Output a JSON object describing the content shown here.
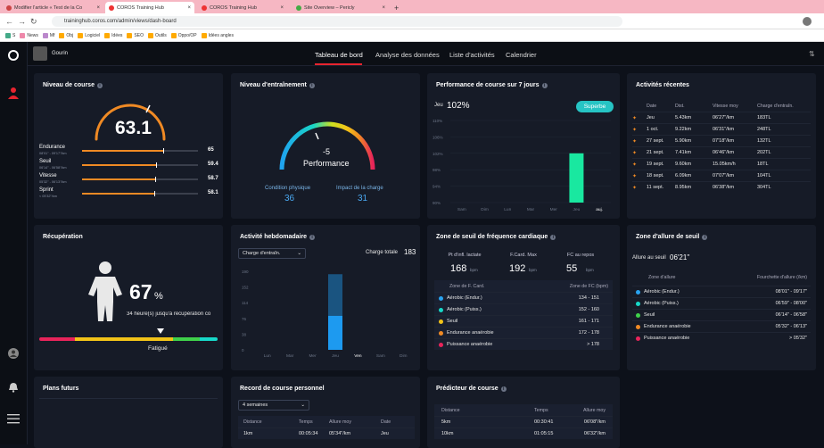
{
  "browser": {
    "tabs": [
      {
        "label": "Modifier l'article « Test de la Co",
        "color": "#c44"
      },
      {
        "label": "COROS Training Hub",
        "color": "#e33"
      },
      {
        "label": "COROS Training Hub",
        "color": "#e33"
      },
      {
        "label": "Site Overview – Pericly",
        "color": "#4a4"
      }
    ],
    "url": "traininghub.coros.com/admin/views/dash-board",
    "bookmarks": [
      "S",
      "News",
      "Mf",
      "Obj",
      "Logiciel",
      "Idées",
      "SEO",
      "Outils",
      "Oppo/OP",
      "Idées angles"
    ]
  },
  "app": {
    "user": "Gourin",
    "nav": [
      "Tableau de bord",
      "Analyse des données",
      "Liste d'activités",
      "Calendrier"
    ]
  },
  "niveau_course": {
    "title": "Niveau de course",
    "score": "63.1",
    "items": [
      {
        "name": "Endurance",
        "range": "08'01\" - 09'17\"/km",
        "value": "65",
        "pct": 0.7
      },
      {
        "name": "Seuil",
        "range": "06'14\" - 06'58\"/km",
        "value": "59.4",
        "pct": 0.64
      },
      {
        "name": "Vitesse",
        "range": "05'32\" - 06'13\"/km",
        "value": "58.7",
        "pct": 0.63
      },
      {
        "name": "Sprint",
        "range": "< 05'32\"/km",
        "value": "58.1",
        "pct": 0.62
      }
    ]
  },
  "niveau_entrainement": {
    "title": "Niveau d'entraînement",
    "value": "-5",
    "label": "Performance",
    "cond_label": "Condition physique",
    "cond_value": "36",
    "charge_label": "Impact de la charge",
    "charge_value": "31"
  },
  "perf7": {
    "title": "Performance de course sur 7 jours",
    "day": "Jeu",
    "pct": "102%",
    "badge": "Superbe",
    "yticks": [
      "110%",
      "106%",
      "102%",
      "98%",
      "94%",
      "90%"
    ],
    "days": [
      "Sam",
      "Dim",
      "Lun",
      "Mar",
      "Mer",
      "Jeu",
      "auj."
    ]
  },
  "recentes": {
    "title": "Activités récentes",
    "headers": [
      "Date",
      "Dist.",
      "Vitesse moy",
      "Charge d'entraîn."
    ],
    "rows": [
      [
        "Jeu",
        "5.43km",
        "06'27\"/km",
        "183TL"
      ],
      [
        "1 oct.",
        "9.22km",
        "06'31\"/km",
        "248TL"
      ],
      [
        "27 sept.",
        "5.90km",
        "07'18\"/km",
        "132TL"
      ],
      [
        "21 sept.",
        "7.41km",
        "06'46\"/km",
        "202TL"
      ],
      [
        "19 sept.",
        "9.60km",
        "15.05km/h",
        "18TL"
      ],
      [
        "18 sept.",
        "6.09km",
        "07'07\"/km",
        "104TL"
      ],
      [
        "11 sept.",
        "8.95km",
        "06'38\"/km",
        "304TL"
      ]
    ]
  },
  "recuperation": {
    "title": "Récupération",
    "pct": "67",
    "unit": "%",
    "sub": "34 heure(s) jusqu'à récupération co",
    "state": "Fatigué"
  },
  "hebdo": {
    "title": "Activité hebdomadaire",
    "select": "Charge d'entraîn.",
    "total_label": "Charge totale",
    "total": "183",
    "yticks": [
      "190",
      "152",
      "114",
      "76",
      "38",
      "0"
    ],
    "days": [
      "Lun",
      "Mar",
      "Mer",
      "Jeu",
      "Ven",
      "Sam",
      "Dim"
    ]
  },
  "seuil_fc": {
    "title": "Zone de seuil de fréquence cardiaque",
    "stats": [
      {
        "label": "Pt d'infl. lactate",
        "value": "168",
        "unit": "bpm"
      },
      {
        "label": "F.Card. Max",
        "value": "192",
        "unit": "bpm"
      },
      {
        "label": "FC au repos",
        "value": "55",
        "unit": "bpm"
      }
    ],
    "headers": [
      "Zone de F. Card.",
      "Zone de FC (bpm)"
    ],
    "rows": [
      {
        "name": "Aérobic (Endur.)",
        "range": "134 - 151",
        "color": "#29a3f0"
      },
      {
        "name": "Aérobic (Puiss.)",
        "range": "152 - 160",
        "color": "#17d8c8"
      },
      {
        "name": "Seuil",
        "range": "161 - 171",
        "color": "#f2c318"
      },
      {
        "name": "Endurance anaérobie",
        "range": "172 - 178",
        "color": "#f08a24"
      },
      {
        "name": "Puissance anaérobie",
        "range": "> 178",
        "color": "#e8245a"
      }
    ]
  },
  "allure": {
    "title": "Zone d'allure de seuil",
    "label": "Allure au seuil",
    "value": "06'21\"",
    "headers": [
      "Zone d'allure",
      "Fourchette d'allure (/km)"
    ],
    "rows": [
      {
        "name": "Aérobic (Endur.)",
        "range": "08'01\" - 09'17\"",
        "color": "#29a3f0"
      },
      {
        "name": "Aérobic (Puiss.)",
        "range": "06'59\" - 08'00\"",
        "color": "#17d8c8"
      },
      {
        "name": "Seuil",
        "range": "06'14\" - 06'58\"",
        "color": "#3fd14a"
      },
      {
        "name": "Endurance anaérobie",
        "range": "05'32\" - 06'13\"",
        "color": "#f08a24"
      },
      {
        "name": "Puissance anaérobie",
        "range": "> 05'32\"",
        "color": "#e8245a"
      }
    ]
  },
  "plans": {
    "title": "Plans futurs"
  },
  "record": {
    "title": "Record de course personnel",
    "select": "4 semaines",
    "headers": [
      "Distance",
      "Temps",
      "Allure moy",
      "Date"
    ],
    "rows": [
      [
        "1km",
        "00:05:34",
        "05'34\"/km",
        "Jeu"
      ]
    ]
  },
  "predicteur": {
    "title": "Prédicteur de course",
    "headers": [
      "Distance",
      "Temps",
      "Allure moy"
    ],
    "rows": [
      [
        "5km",
        "00:30:41",
        "06'08\"/km"
      ],
      [
        "10km",
        "01:05:15",
        "06'32\"/km"
      ]
    ]
  },
  "chart_data": [
    {
      "type": "bar",
      "title": "Performance de course sur 7 jours",
      "categories": [
        "Sam",
        "Dim",
        "Lun",
        "Mar",
        "Mer",
        "Jeu",
        "auj."
      ],
      "values": [
        null,
        null,
        null,
        null,
        null,
        102,
        null
      ],
      "ylim": [
        90,
        110
      ]
    },
    {
      "type": "bar",
      "title": "Activité hebdomadaire",
      "categories": [
        "Lun",
        "Mar",
        "Mer",
        "Jeu",
        "Ven",
        "Sam",
        "Dim"
      ],
      "values": [
        0,
        0,
        0,
        183,
        0,
        0,
        0
      ],
      "ylim": [
        0,
        190
      ]
    }
  ]
}
